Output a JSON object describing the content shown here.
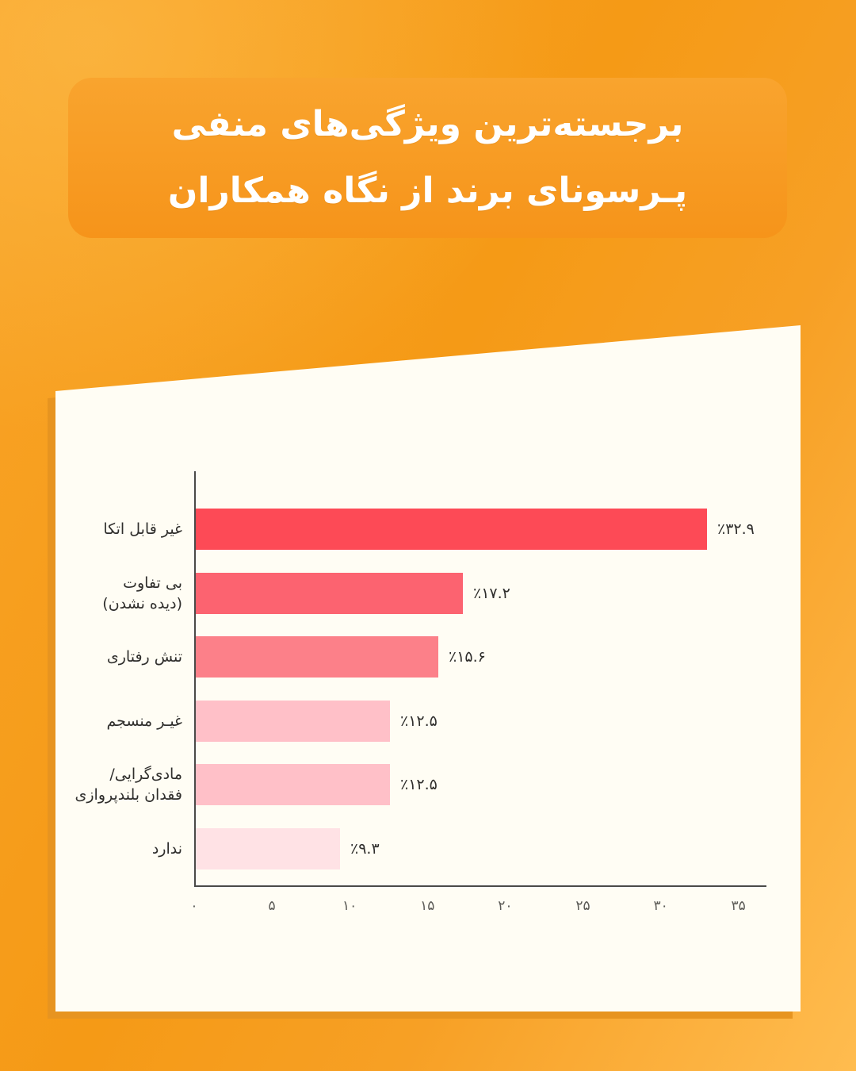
{
  "title": {
    "line1": "برجسته‌ترین ویژگی‌های منفی",
    "line2": "پـرسونای برند از نگاه همکاران"
  },
  "colors": {
    "background_orange_dark": "#F59A16",
    "background_orange_light": "#FFBC4F",
    "title_box_orange": "#F8991F",
    "panel_cream": "#FFFDF4",
    "panel_shadow": "#E79420",
    "axis": "#4A4A48",
    "label_text": "#2F2E2C",
    "tick_text": "#5B5A56",
    "title_text": "#FFFFFF"
  },
  "chart_data": {
    "type": "bar",
    "orientation": "horizontal",
    "title": "برجسته‌ترین ویژگی‌های منفی پرسونای برند از نگاه همکاران",
    "categories": [
      [
        "غیر قابل اتکا"
      ],
      [
        "بی تفاوت",
        "(دیده نشدن)"
      ],
      [
        "تنش رفتاری"
      ],
      [
        "غیـر منسجم"
      ],
      [
        "مادی‌گرایی/",
        "فقدان بلندپروازی"
      ],
      [
        "ندارد"
      ]
    ],
    "values": [
      32.9,
      17.2,
      15.6,
      12.5,
      12.5,
      9.3
    ],
    "value_labels": [
      "٪۳۲.۹",
      "٪۱۷.۲",
      "٪۱۵.۶",
      "٪۱۲.۵",
      "٪۱۲.۵",
      "٪۹.۳"
    ],
    "bar_colors": [
      "#FD4A56",
      "#FC6370",
      "#FC8089",
      "#FFC0C8",
      "#FFC0C8",
      "#FFE2E5"
    ],
    "x_ticks": [
      "۰",
      "۵",
      "۱۰",
      "۱۵",
      "۲۰",
      "۲۵",
      "۳۰",
      "۳۵"
    ],
    "x_tick_values": [
      0,
      5,
      10,
      15,
      20,
      25,
      30,
      35
    ],
    "xlim": [
      0,
      36.8
    ],
    "grid": false,
    "legend": false
  }
}
